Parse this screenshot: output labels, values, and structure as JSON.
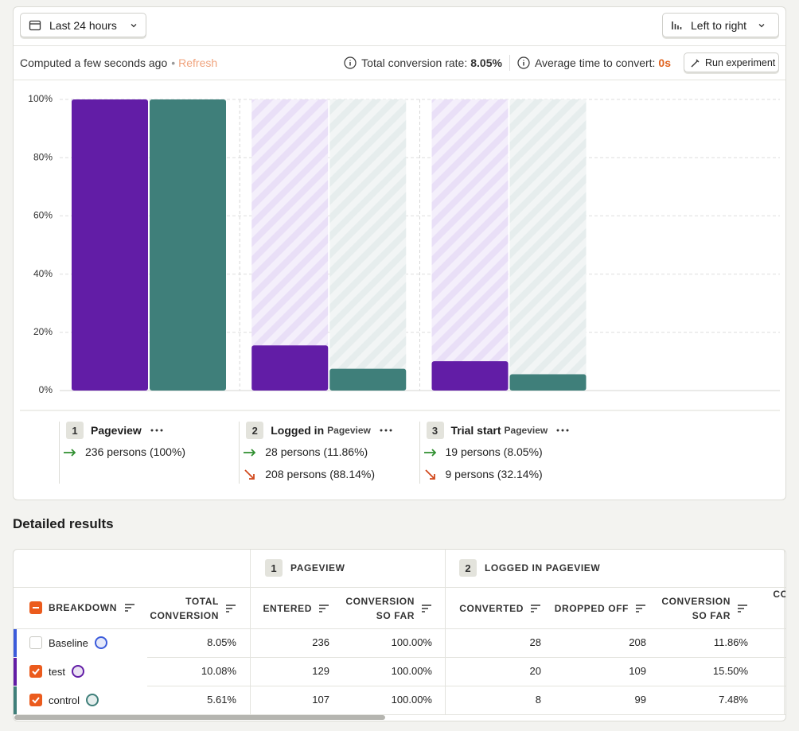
{
  "toolbar": {
    "date_range": "Last 24 hours",
    "layout": "Left to right"
  },
  "status": {
    "computed": "Computed a few seconds ago",
    "separator": "•",
    "refresh": "Refresh",
    "total_label": "Total conversion rate:",
    "total_value": "8.05%",
    "avg_label": "Average time to convert:",
    "avg_value": "0s",
    "run_button": "Run experiment"
  },
  "chart_data": {
    "type": "bar",
    "categories": [
      "Pageview",
      "Logged in",
      "Trial start"
    ],
    "series": [
      {
        "color": "#621da6",
        "values": [
          100,
          15.5,
          10.08
        ]
      },
      {
        "color": "#3f7f7a",
        "values": [
          100,
          7.48,
          5.61
        ]
      }
    ],
    "ylim": [
      0,
      100
    ],
    "yticks": [
      {
        "value": 0,
        "label": "0%"
      },
      {
        "value": 20,
        "label": "20%"
      },
      {
        "value": 40,
        "label": "40%"
      },
      {
        "value": 60,
        "label": "60%"
      },
      {
        "value": 80,
        "label": "80%"
      },
      {
        "value": 100,
        "label": "100%"
      }
    ],
    "grid": true
  },
  "steps": [
    {
      "number": "1",
      "converted": "236 persons (100%)"
    },
    {
      "number": "2",
      "event": "Pageview",
      "converted": "28 persons (11.86%)",
      "dropped": "208 persons (88.14%)"
    },
    {
      "number": "3",
      "event": "Pageview",
      "converted": "19 persons (8.05%)",
      "dropped": "9 persons (32.14%)"
    }
  ],
  "results": {
    "title": "Detailed results",
    "groups": [
      {
        "number": "1",
        "name": "PAGEVIEW"
      },
      {
        "number": "2",
        "name": "LOGGED IN",
        "event": "PAGEVIEW"
      }
    ],
    "columns": [
      "BREAKDOWN",
      "TOTAL CONVERSION",
      "ENTERED",
      "CONVERSION SO FAR",
      "CONVERTED",
      "DROPPED OFF",
      "CONVERSION SO FAR",
      "CONVERSION FROM PREVIOUS"
    ],
    "rows": [
      {
        "label": "Baseline",
        "checked": false,
        "color": "#3b5bdb",
        "cells": [
          "8.05%",
          "236",
          "100.00%",
          "28",
          "208",
          "11.86%"
        ]
      },
      {
        "label": "test",
        "checked": true,
        "color": "#621da6",
        "cells": [
          "10.08%",
          "129",
          "100.00%",
          "20",
          "109",
          "15.50%"
        ]
      },
      {
        "label": "control",
        "checked": true,
        "color": "#3f7f7a",
        "cells": [
          "5.61%",
          "107",
          "100.00%",
          "8",
          "99",
          "7.48%"
        ]
      }
    ]
  }
}
